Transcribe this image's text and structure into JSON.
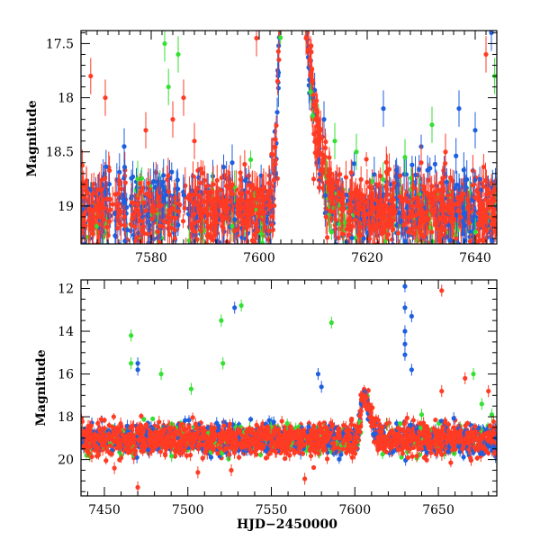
{
  "chart_data": [
    {
      "type": "scatter",
      "panel": "top",
      "xlabel": "",
      "ylabel": "Magnitude",
      "xlim": [
        7567,
        7644
      ],
      "ylim": [
        19.35,
        17.38
      ],
      "y_inverted": true,
      "x_ticks": [
        7580,
        7600,
        7620,
        7640
      ],
      "y_ticks": [
        17.5,
        18,
        18.5,
        19
      ],
      "series_colors": [
        "#1e5fe0",
        "#33e033",
        "#ff3b24"
      ],
      "baseline_magnitude": 19.05,
      "baseline_scatter": 0.18,
      "error_bar_mag": 0.12,
      "peaks": [
        {
          "x": 7605.2,
          "y": 17.4,
          "width": 1.2,
          "tail": 3.5,
          "color": "#ff3b24"
        },
        {
          "x": 7605.0,
          "y": 17.6,
          "width": 1.0,
          "tail": 3.0,
          "color": "#1e5fe0"
        },
        {
          "x": 7604.8,
          "y": 18.3,
          "width": 0.8,
          "tail": 2.5,
          "color": "#33e033"
        }
      ],
      "outliers": [
        {
          "x": 7568.8,
          "y": 17.8,
          "color": "#ff3b24"
        },
        {
          "x": 7571.5,
          "y": 18.0,
          "color": "#ff3b24"
        },
        {
          "x": 7575.0,
          "y": 18.45,
          "color": "#1e5fe0"
        },
        {
          "x": 7577.5,
          "y": 18.75,
          "color": "#33e033"
        },
        {
          "x": 7579.0,
          "y": 18.3,
          "color": "#ff3b24"
        },
        {
          "x": 7582.5,
          "y": 17.5,
          "color": "#33e033"
        },
        {
          "x": 7583.2,
          "y": 17.9,
          "color": "#33e033"
        },
        {
          "x": 7584.0,
          "y": 18.2,
          "color": "#ff3b24"
        },
        {
          "x": 7585.0,
          "y": 17.6,
          "color": "#33e033"
        },
        {
          "x": 7586.0,
          "y": 18.0,
          "color": "#ff3b24"
        },
        {
          "x": 7588.0,
          "y": 18.4,
          "color": "#ff3b24"
        },
        {
          "x": 7595.0,
          "y": 18.6,
          "color": "#1e5fe0"
        },
        {
          "x": 7599.5,
          "y": 17.45,
          "color": "#ff3b24"
        },
        {
          "x": 7612.0,
          "y": 18.2,
          "color": "#1e5fe0"
        },
        {
          "x": 7614.0,
          "y": 18.4,
          "color": "#33e033"
        },
        {
          "x": 7618.0,
          "y": 18.5,
          "color": "#33e033"
        },
        {
          "x": 7623.0,
          "y": 18.1,
          "color": "#1e5fe0"
        },
        {
          "x": 7627.0,
          "y": 18.55,
          "color": "#33e033"
        },
        {
          "x": 7630.0,
          "y": 18.6,
          "color": "#ff3b24"
        },
        {
          "x": 7632.0,
          "y": 18.25,
          "color": "#33e033"
        },
        {
          "x": 7634.5,
          "y": 18.5,
          "color": "#ff3b24"
        },
        {
          "x": 7637.0,
          "y": 18.1,
          "color": "#1e5fe0"
        },
        {
          "x": 7640.0,
          "y": 18.3,
          "color": "#1e5fe0"
        },
        {
          "x": 7642.0,
          "y": 17.6,
          "color": "#ff3b24"
        },
        {
          "x": 7643.0,
          "y": 17.4,
          "color": "#1e5fe0"
        },
        {
          "x": 7643.6,
          "y": 17.8,
          "color": "#33e033"
        }
      ]
    },
    {
      "type": "scatter",
      "panel": "bottom",
      "xlabel": "HJD−2450000",
      "ylabel": "Magnitude",
      "xlim": [
        7436,
        7685
      ],
      "ylim": [
        21.7,
        11.6
      ],
      "y_inverted": true,
      "x_ticks": [
        7450,
        7500,
        7550,
        7600,
        7650
      ],
      "y_ticks": [
        12,
        14,
        16,
        18,
        20
      ],
      "series_colors": [
        "#1e5fe0",
        "#33e033",
        "#ff3b24"
      ],
      "baseline_magnitude": 19.05,
      "baseline_scatter": 0.35,
      "error_bar_mag": 0.2,
      "peaks": [
        {
          "x": 7605.0,
          "y": 16.9,
          "width": 1.5,
          "tail": 4.0,
          "color": "#ff3b24"
        }
      ],
      "outliers": [
        {
          "x": 7466.0,
          "y": 14.2,
          "color": "#33e033"
        },
        {
          "x": 7466.0,
          "y": 15.5,
          "color": "#33e033"
        },
        {
          "x": 7470.0,
          "y": 15.5,
          "color": "#1e5fe0"
        },
        {
          "x": 7470.0,
          "y": 15.8,
          "color": "#1e5fe0"
        },
        {
          "x": 7470.0,
          "y": 21.3,
          "color": "#ff3b24"
        },
        {
          "x": 7484.0,
          "y": 16.0,
          "color": "#33e033"
        },
        {
          "x": 7502.0,
          "y": 16.7,
          "color": "#33e033"
        },
        {
          "x": 7520.0,
          "y": 13.5,
          "color": "#33e033"
        },
        {
          "x": 7521.0,
          "y": 15.5,
          "color": "#33e033"
        },
        {
          "x": 7528.0,
          "y": 12.9,
          "color": "#1e5fe0"
        },
        {
          "x": 7532.0,
          "y": 12.8,
          "color": "#33e033"
        },
        {
          "x": 7578.0,
          "y": 16.0,
          "color": "#1e5fe0"
        },
        {
          "x": 7580.0,
          "y": 16.6,
          "color": "#1e5fe0"
        },
        {
          "x": 7586.0,
          "y": 13.6,
          "color": "#33e033"
        },
        {
          "x": 7630.0,
          "y": 11.9,
          "color": "#1e5fe0"
        },
        {
          "x": 7630.0,
          "y": 12.9,
          "color": "#1e5fe0"
        },
        {
          "x": 7630.0,
          "y": 14.0,
          "color": "#1e5fe0"
        },
        {
          "x": 7630.0,
          "y": 14.6,
          "color": "#1e5fe0"
        },
        {
          "x": 7630.0,
          "y": 15.1,
          "color": "#1e5fe0"
        },
        {
          "x": 7634.0,
          "y": 13.3,
          "color": "#1e5fe0"
        },
        {
          "x": 7634.0,
          "y": 15.8,
          "color": "#1e5fe0"
        },
        {
          "x": 7652.0,
          "y": 12.1,
          "color": "#ff3b24"
        },
        {
          "x": 7666.0,
          "y": 16.2,
          "color": "#ff3b24"
        },
        {
          "x": 7671.0,
          "y": 16.0,
          "color": "#33e033"
        },
        {
          "x": 7676.0,
          "y": 17.4,
          "color": "#33e033"
        },
        {
          "x": 7680.0,
          "y": 16.8,
          "color": "#ff3b24"
        },
        {
          "x": 7682.0,
          "y": 17.9,
          "color": "#33e033"
        },
        {
          "x": 7652.0,
          "y": 16.8,
          "color": "#ff3b24"
        },
        {
          "x": 7640.0,
          "y": 17.9,
          "color": "#33e033"
        },
        {
          "x": 7506.0,
          "y": 20.6,
          "color": "#ff3b24"
        },
        {
          "x": 7570.0,
          "y": 20.9,
          "color": "#ff3b24"
        },
        {
          "x": 7526.0,
          "y": 20.5,
          "color": "#ff3b24"
        },
        {
          "x": 7456.0,
          "y": 20.4,
          "color": "#ff3b24"
        }
      ]
    }
  ]
}
